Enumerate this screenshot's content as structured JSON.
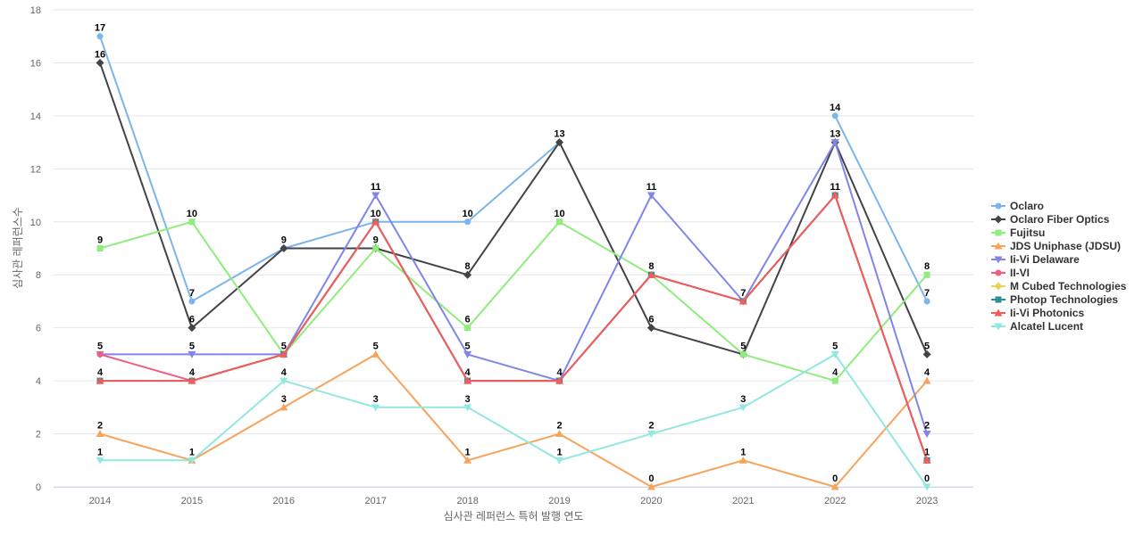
{
  "chart_data": {
    "type": "line",
    "title": "",
    "xlabel": "심사관 레퍼런스 특허 발행 연도",
    "ylabel": "심사관 레퍼런스수",
    "ylim": [
      0,
      18
    ],
    "yticks": [
      0,
      2,
      4,
      6,
      8,
      10,
      12,
      14,
      16,
      18
    ],
    "grid": true,
    "legend": "right",
    "categories": [
      "2014",
      "2015",
      "2016",
      "2017",
      "2018",
      "2019",
      "2020",
      "2021",
      "2022",
      "2023"
    ],
    "series": [
      {
        "name": "Oclaro",
        "color": "#7cb5ec",
        "marker": "circle",
        "values": [
          17,
          7,
          9,
          10,
          10,
          13,
          null,
          null,
          14,
          7
        ],
        "labels": [
          17,
          7,
          null,
          null,
          10,
          13,
          null,
          null,
          14,
          7
        ]
      },
      {
        "name": "Oclaro Fiber Optics",
        "color": "#434348",
        "marker": "diamond",
        "values": [
          16,
          6,
          9,
          9,
          8,
          13,
          6,
          5,
          13,
          5
        ],
        "labels": [
          16,
          6,
          9,
          9,
          8,
          null,
          6,
          5,
          13,
          5
        ]
      },
      {
        "name": "Fujitsu",
        "color": "#90ed7d",
        "marker": "square",
        "values": [
          9,
          10,
          5,
          9,
          6,
          10,
          8,
          5,
          4,
          8
        ],
        "labels": [
          9,
          10,
          null,
          null,
          6,
          10,
          null,
          null,
          4,
          8
        ]
      },
      {
        "name": "JDS Uniphase (JDSU)",
        "color": "#f7a35c",
        "marker": "triangle",
        "values": [
          2,
          1,
          3,
          5,
          1,
          2,
          0,
          1,
          0,
          4
        ],
        "labels": [
          2,
          1,
          3,
          5,
          1,
          2,
          0,
          1,
          0,
          4
        ]
      },
      {
        "name": "Ii-Vi Delaware",
        "color": "#8085e9",
        "marker": "triangle-down",
        "values": [
          5,
          5,
          5,
          11,
          5,
          4,
          11,
          7,
          13,
          2
        ],
        "labels": [
          null,
          5,
          null,
          11,
          5,
          null,
          11,
          null,
          null,
          2
        ]
      },
      {
        "name": "II-VI",
        "color": "#f15c80",
        "marker": "circle",
        "values": [
          5,
          4,
          5,
          10,
          4,
          4,
          8,
          7,
          11,
          1
        ],
        "labels": [
          5,
          null,
          5,
          null,
          null,
          null,
          null,
          null,
          null,
          null
        ]
      },
      {
        "name": "M Cubed Technologies",
        "color": "#e4d354",
        "marker": "diamond",
        "values": [
          null,
          null,
          null,
          null,
          null,
          null,
          null,
          null,
          null,
          null
        ],
        "labels": [
          null,
          null,
          null,
          null,
          null,
          null,
          null,
          null,
          null,
          null
        ]
      },
      {
        "name": "Photop Technologies",
        "color": "#2b908f",
        "marker": "square",
        "values": [
          4,
          4,
          5,
          10,
          4,
          4,
          8,
          7,
          11,
          1
        ],
        "labels": [
          4,
          null,
          null,
          null,
          null,
          null,
          null,
          null,
          null,
          null
        ]
      },
      {
        "name": "Ii-Vi Photonics",
        "color": "#f45b5b",
        "marker": "triangle",
        "values": [
          4,
          4,
          5,
          10,
          4,
          4,
          8,
          7,
          11,
          1
        ],
        "labels": [
          null,
          4,
          null,
          10,
          4,
          4,
          8,
          7,
          11,
          1
        ]
      },
      {
        "name": "Alcatel Lucent",
        "color": "#91e8e1",
        "marker": "triangle-down",
        "values": [
          1,
          1,
          4,
          3,
          3,
          1,
          2,
          3,
          5,
          0
        ],
        "labels": [
          1,
          null,
          4,
          3,
          3,
          1,
          2,
          3,
          5,
          0
        ]
      }
    ]
  }
}
